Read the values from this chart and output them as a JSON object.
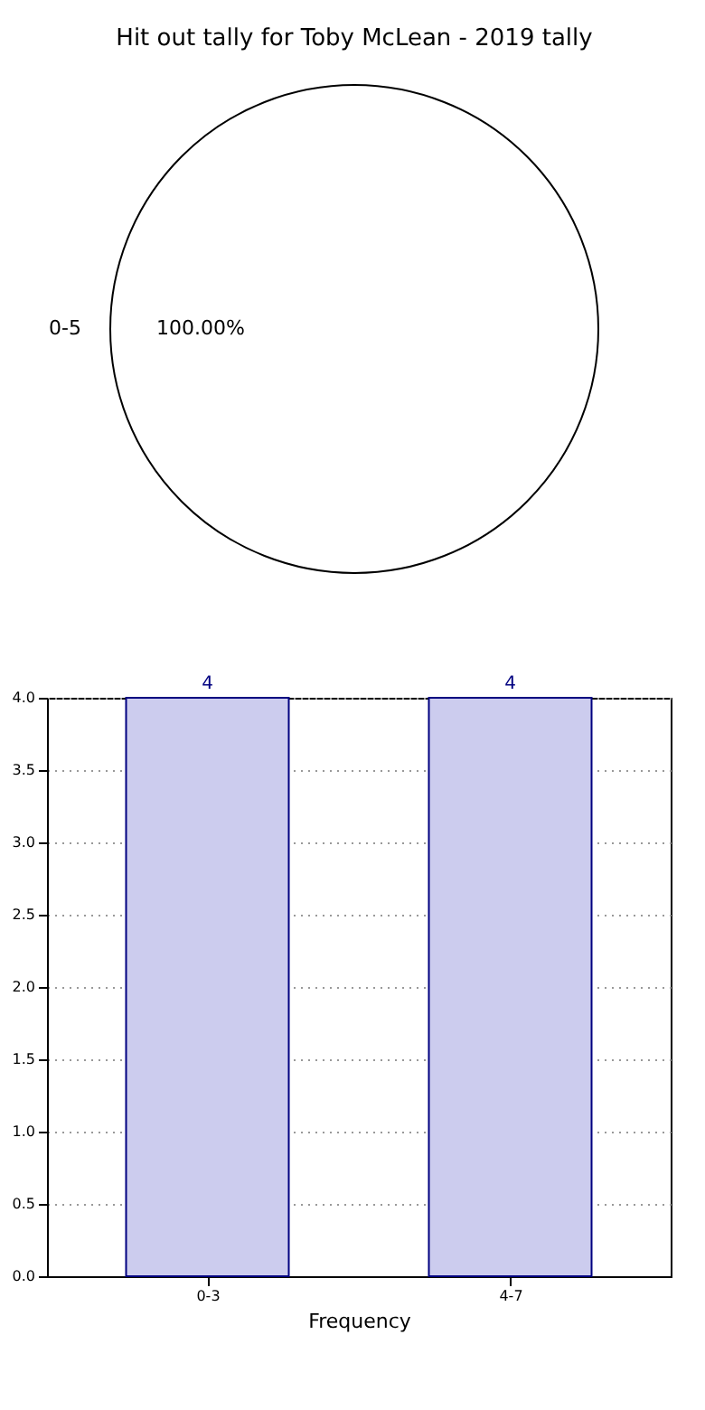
{
  "chart_data": [
    {
      "type": "pie",
      "title": "Hit out tally for Toby McLean - 2019 tally",
      "categories": [
        "0-5"
      ],
      "values": [
        100
      ],
      "colors": [
        "#ffffff"
      ],
      "value_labels": [
        "100.00%"
      ]
    },
    {
      "type": "bar",
      "xlabel": "Frequency",
      "categories": [
        "0-3",
        "4-7"
      ],
      "values": [
        4,
        4
      ],
      "color": "#ccccee",
      "data_labels": true,
      "grid": true,
      "ylim": [
        0,
        4
      ],
      "yticks": [
        {
          "value": 0,
          "label": "0.0"
        },
        {
          "value": 0.5,
          "label": "0.5"
        },
        {
          "value": 1,
          "label": "1.0"
        },
        {
          "value": 1.5,
          "label": "1.5"
        },
        {
          "value": 2,
          "label": "2.0"
        },
        {
          "value": 2.5,
          "label": "2.5"
        },
        {
          "value": 3,
          "label": "3.0"
        },
        {
          "value": 3.5,
          "label": "3.5"
        },
        {
          "value": 4,
          "label": "4.0"
        }
      ]
    }
  ]
}
